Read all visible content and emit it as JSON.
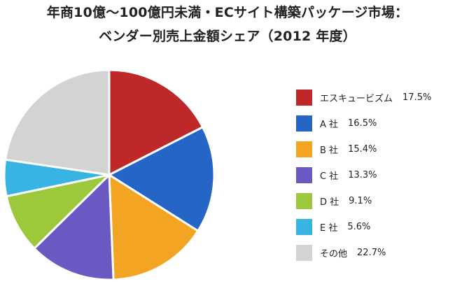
{
  "chart_data": {
    "type": "pie",
    "title": "年商10億～100億円未満・ECサイト構築パッケージ市場：",
    "subtitle": "ベンダー別売上金額シェア（2012 年度）",
    "legend_position": "right",
    "slices": [
      {
        "label": "エスキュービズム",
        "value": 17.5,
        "value_label": "17.5%",
        "color": "#be2828"
      },
      {
        "label": "A 社",
        "value": 16.5,
        "value_label": "16.5%",
        "color": "#2565c5"
      },
      {
        "label": "B 社",
        "value": 15.4,
        "value_label": "15.4%",
        "color": "#f2a422"
      },
      {
        "label": "C 社",
        "value": 13.3,
        "value_label": "13.3%",
        "color": "#6a58c3"
      },
      {
        "label": "D 社",
        "value": 9.1,
        "value_label": "9.1%",
        "color": "#9cc83c"
      },
      {
        "label": "E 社",
        "value": 5.6,
        "value_label": "5.6%",
        "color": "#38b4e2"
      },
      {
        "label": "その他",
        "value": 22.7,
        "value_label": "22.7%",
        "color": "#d3d3d3"
      }
    ]
  }
}
